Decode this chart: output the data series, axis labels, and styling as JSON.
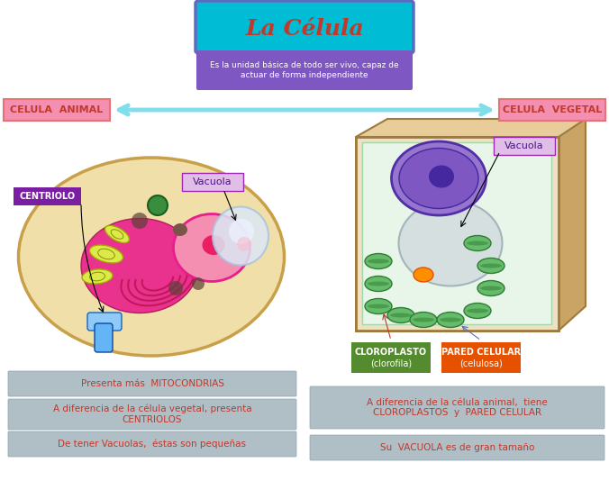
{
  "title": "La Célula",
  "title_color": "#c0392b",
  "title_box_color": "#00bcd4",
  "title_box_border": "#5c6bc0",
  "subtitle": "Es la unidad básica de todo ser vivo, capaz de\nactuar de forma independiente",
  "subtitle_box_color": "#7e57c2",
  "subtitle_text_color": "#ffffff",
  "left_label": "CELULA  ANIMAL",
  "right_label": "CELULA  VEGETAL",
  "label_box_color": "#f48fb1",
  "label_text_color": "#c0392b",
  "arrow_color": "#80deea",
  "bg_color": "#ffffff",
  "info_box_color": "#b0bec5",
  "info_text_color": "#c0392b",
  "left_info": [
    "Presenta más  MITOCONDRIAS",
    "A diferencia de la célula vegetal, presenta\nCENTRIOLOS",
    "De tener Vacuolas,  éstas son pequeñas"
  ],
  "right_info": [
    "A diferencia de la célula animal,  tiene\nCLOROPLASTOS  y  PARED CELULAR",
    "Su  VACUOLA es de gran tamaño"
  ],
  "centriolo_box_color": "#7b1fa2",
  "centriolo_text_color": "#ffffff",
  "vacuola_box_color": "#e1bee7",
  "vacuola_text_color": "#4a148c",
  "cloroplasto_box_color": "#558b2f",
  "cloroplasto_text_color": "#ffffff",
  "pared_box_color": "#e65100",
  "pared_text_color": "#ffffff"
}
